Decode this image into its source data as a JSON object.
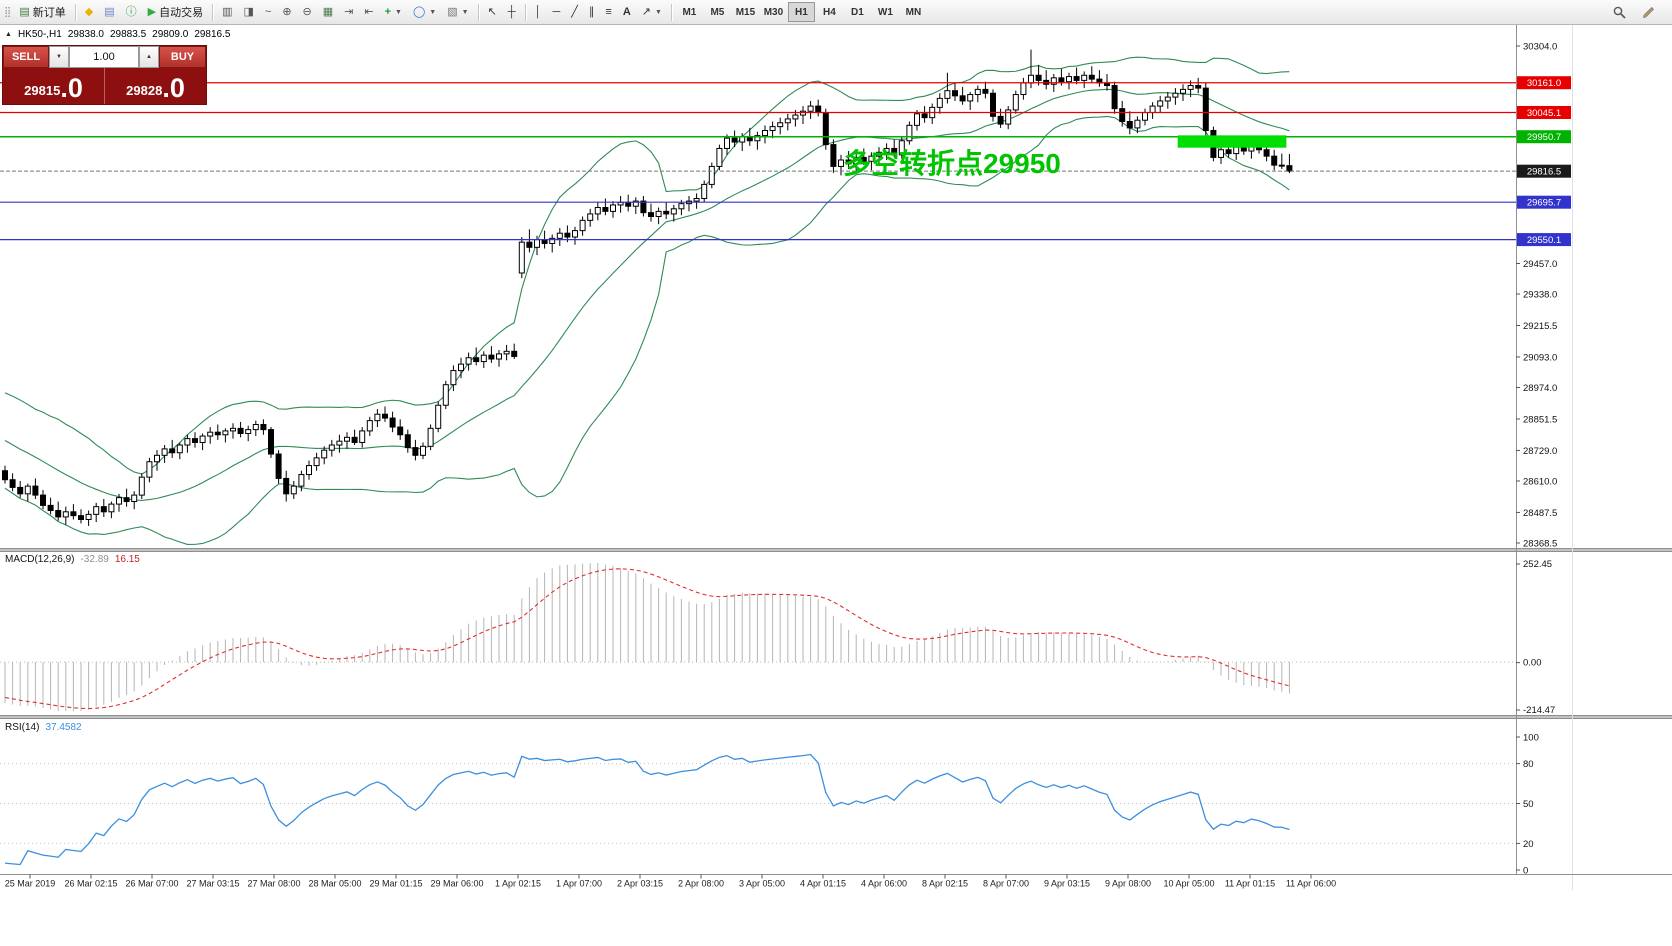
{
  "toolbar": {
    "new_order_label": "新订单",
    "auto_trading_label": "自动交易",
    "timeframes": [
      "M1",
      "M5",
      "M15",
      "M30",
      "H1",
      "H4",
      "D1",
      "W1",
      "MN"
    ],
    "active_timeframe": "H1"
  },
  "symbol_info": {
    "title": "HK50-,H1",
    "open": "29838.0",
    "high": "29883.5",
    "low": "29809.0",
    "close": "29816.5"
  },
  "trade_panel": {
    "sell_label": "SELL",
    "buy_label": "BUY",
    "volume": "1.00",
    "sell_price_main": "29815",
    "sell_price_frac": ".0",
    "buy_price_main": "29828",
    "buy_price_frac": ".0"
  },
  "chart_data": {
    "type": "candlestick",
    "symbol": "HK50-",
    "timeframe": "H1",
    "annotation": {
      "text": "多空转折点29950",
      "color": "#00c400"
    },
    "price_axis": {
      "side": "right",
      "ticks": [
        "30304.0",
        "29457.0",
        "29338.0",
        "29215.5",
        "29093.0",
        "28974.0",
        "28851.5",
        "28729.0",
        "28610.0",
        "28487.5",
        "28368.5"
      ]
    },
    "time_axis": [
      "25 Mar 2019",
      "26 Mar 02:15",
      "26 Mar 07:00",
      "27 Mar 03:15",
      "27 Mar 08:00",
      "28 Mar 05:00",
      "29 Mar 01:15",
      "29 Mar 06:00",
      "1 Apr 02:15",
      "1 Apr 07:00",
      "2 Apr 03:15",
      "2 Apr 08:00",
      "3 Apr 05:00",
      "4 Apr 01:15",
      "4 Apr 06:00",
      "8 Apr 02:15",
      "8 Apr 07:00",
      "9 Apr 03:15",
      "9 Apr 08:00",
      "10 Apr 05:00",
      "11 Apr 01:15",
      "11 Apr 06:00"
    ],
    "levels": [
      {
        "price": 30161.0,
        "label": "30161.0",
        "color": "#e80000",
        "type": "resistance"
      },
      {
        "price": 30045.1,
        "label": "30045.1",
        "color": "#e80000",
        "type": "resistance"
      },
      {
        "price": 29950.7,
        "label": "29950.7",
        "color": "#00b300",
        "type": "pivot"
      },
      {
        "price": 29816.5,
        "label": "29816.5",
        "color": "#1a1a1a",
        "type": "current"
      },
      {
        "price": 29695.7,
        "label": "29695.7",
        "color": "#3232cc",
        "type": "support"
      },
      {
        "price": 29550.1,
        "label": "29550.1",
        "color": "#3232cc",
        "type": "support"
      }
    ],
    "highlight_box": {
      "index_start": 154.3,
      "index_end": 168.6,
      "price_top": 29956,
      "price_bottom": 29908,
      "color": "#00dd00"
    },
    "indicators": {
      "bollinger": {
        "period": 20,
        "deviation": 2,
        "color": "#2e8b57"
      },
      "macd": {
        "name": "MACD(12,26,9)",
        "fast": 12,
        "slow": 26,
        "signal": 9,
        "value": "-32.89",
        "signal_value": "16.15",
        "axis_ticks": [
          "252.45",
          "0.00",
          "-214.47"
        ],
        "histogram_color": "#b5b5b5",
        "signal_color": "#e03030"
      },
      "rsi": {
        "name": "RSI(14)",
        "period": 14,
        "value": "37.4582",
        "axis_ticks": [
          "100",
          "80",
          "50",
          "20",
          "0"
        ],
        "guide_levels": [
          80,
          50,
          20
        ],
        "color": "#3c8fde"
      }
    },
    "candles": [
      [
        28650,
        28670,
        28600,
        28615
      ],
      [
        28615,
        28640,
        28570,
        28585
      ],
      [
        28585,
        28610,
        28545,
        28560
      ],
      [
        28560,
        28600,
        28530,
        28590
      ],
      [
        28590,
        28620,
        28540,
        28555
      ],
      [
        28555,
        28575,
        28500,
        28515
      ],
      [
        28515,
        28545,
        28480,
        28495
      ],
      [
        28495,
        28530,
        28455,
        28470
      ],
      [
        28470,
        28510,
        28440,
        28490
      ],
      [
        28490,
        28520,
        28460,
        28475
      ],
      [
        28475,
        28500,
        28445,
        28460
      ],
      [
        28460,
        28495,
        28435,
        28480
      ],
      [
        28480,
        28525,
        28450,
        28510
      ],
      [
        28510,
        28540,
        28470,
        28490
      ],
      [
        28490,
        28530,
        28465,
        28520
      ],
      [
        28520,
        28560,
        28490,
        28545
      ],
      [
        28545,
        28580,
        28510,
        28530
      ],
      [
        28530,
        28570,
        28500,
        28555
      ],
      [
        28555,
        28640,
        28540,
        28625
      ],
      [
        28625,
        28700,
        28605,
        28685
      ],
      [
        28685,
        28730,
        28650,
        28710
      ],
      [
        28710,
        28750,
        28680,
        28735
      ],
      [
        28735,
        28770,
        28700,
        28720
      ],
      [
        28720,
        28760,
        28695,
        28750
      ],
      [
        28750,
        28790,
        28720,
        28775
      ],
      [
        28775,
        28800,
        28740,
        28760
      ],
      [
        28760,
        28795,
        28730,
        28785
      ],
      [
        28785,
        28820,
        28755,
        28800
      ],
      [
        28800,
        28830,
        28770,
        28790
      ],
      [
        28790,
        28815,
        28760,
        28805
      ],
      [
        28805,
        28835,
        28775,
        28815
      ],
      [
        28815,
        28840,
        28780,
        28795
      ],
      [
        28795,
        28825,
        28765,
        28810
      ],
      [
        28810,
        28845,
        28785,
        28830
      ],
      [
        28830,
        28850,
        28790,
        28810
      ],
      [
        28810,
        28820,
        28700,
        28715
      ],
      [
        28715,
        28730,
        28600,
        28620
      ],
      [
        28620,
        28650,
        28530,
        28560
      ],
      [
        28560,
        28610,
        28540,
        28590
      ],
      [
        28590,
        28650,
        28570,
        28635
      ],
      [
        28635,
        28690,
        28615,
        28670
      ],
      [
        28670,
        28720,
        28650,
        28700
      ],
      [
        28700,
        28745,
        28675,
        28730
      ],
      [
        28730,
        28770,
        28705,
        28750
      ],
      [
        28750,
        28790,
        28720,
        28765
      ],
      [
        28765,
        28800,
        28735,
        28780
      ],
      [
        28780,
        28810,
        28750,
        28760
      ],
      [
        28760,
        28820,
        28740,
        28805
      ],
      [
        28805,
        28860,
        28785,
        28845
      ],
      [
        28845,
        28890,
        28820,
        28870
      ],
      [
        28870,
        28900,
        28840,
        28855
      ],
      [
        28855,
        28880,
        28800,
        28820
      ],
      [
        28820,
        28850,
        28770,
        28790
      ],
      [
        28790,
        28810,
        28720,
        28740
      ],
      [
        28740,
        28770,
        28690,
        28710
      ],
      [
        28710,
        28760,
        28695,
        28745
      ],
      [
        28745,
        28830,
        28730,
        28815
      ],
      [
        28815,
        28920,
        28800,
        28905
      ],
      [
        28905,
        29000,
        28890,
        28985
      ],
      [
        28985,
        29060,
        28960,
        29040
      ],
      [
        29040,
        29090,
        29010,
        29065
      ],
      [
        29065,
        29110,
        29040,
        29090
      ],
      [
        29090,
        29130,
        29060,
        29075
      ],
      [
        29075,
        29115,
        29050,
        29100
      ],
      [
        29100,
        29135,
        29070,
        29085
      ],
      [
        29085,
        29120,
        29055,
        29105
      ],
      [
        29105,
        29140,
        29080,
        29115
      ],
      [
        29115,
        29145,
        29085,
        29095
      ],
      [
        29420,
        29560,
        29400,
        29540
      ],
      [
        29540,
        29590,
        29500,
        29520
      ],
      [
        29520,
        29565,
        29490,
        29550
      ],
      [
        29550,
        29585,
        29515,
        29535
      ],
      [
        29535,
        29570,
        29500,
        29555
      ],
      [
        29555,
        29595,
        29525,
        29575
      ],
      [
        29575,
        29605,
        29540,
        29560
      ],
      [
        29560,
        29600,
        29530,
        29585
      ],
      [
        29585,
        29640,
        29565,
        29625
      ],
      [
        29625,
        29670,
        29600,
        29650
      ],
      [
        29650,
        29695,
        29625,
        29675
      ],
      [
        29675,
        29710,
        29645,
        29660
      ],
      [
        29660,
        29700,
        29635,
        29685
      ],
      [
        29685,
        29720,
        29655,
        29695
      ],
      [
        29695,
        29725,
        29660,
        29680
      ],
      [
        29680,
        29715,
        29650,
        29700
      ],
      [
        29700,
        29720,
        29640,
        29655
      ],
      [
        29655,
        29690,
        29620,
        29640
      ],
      [
        29640,
        29675,
        29610,
        29660
      ],
      [
        29660,
        29695,
        29630,
        29650
      ],
      [
        29650,
        29685,
        29620,
        29670
      ],
      [
        29670,
        29705,
        29645,
        29690
      ],
      [
        29690,
        29720,
        29660,
        29700
      ],
      [
        29700,
        29730,
        29670,
        29710
      ],
      [
        29710,
        29780,
        29695,
        29765
      ],
      [
        29765,
        29850,
        29750,
        29835
      ],
      [
        29835,
        29920,
        29820,
        29905
      ],
      [
        29905,
        29960,
        29880,
        29945
      ],
      [
        29945,
        29975,
        29910,
        29930
      ],
      [
        29930,
        29965,
        29895,
        29950
      ],
      [
        29950,
        29985,
        29915,
        29935
      ],
      [
        29935,
        29970,
        29900,
        29955
      ],
      [
        29955,
        29995,
        29925,
        29975
      ],
      [
        29975,
        30010,
        29945,
        29990
      ],
      [
        29990,
        30025,
        29960,
        30005
      ],
      [
        30005,
        30040,
        29975,
        30020
      ],
      [
        30020,
        30055,
        29990,
        30035
      ],
      [
        30035,
        30070,
        30000,
        30050
      ],
      [
        30050,
        30090,
        30020,
        30070
      ],
      [
        30070,
        30095,
        30030,
        30045
      ],
      [
        30045,
        30060,
        29900,
        29920
      ],
      [
        29920,
        29940,
        29810,
        29835
      ],
      [
        29835,
        29880,
        29800,
        29860
      ],
      [
        29860,
        29895,
        29825,
        29845
      ],
      [
        29845,
        29885,
        29815,
        29870
      ],
      [
        29870,
        29905,
        29840,
        29855
      ],
      [
        29855,
        29890,
        29820,
        29875
      ],
      [
        29875,
        29910,
        29845,
        29890
      ],
      [
        29890,
        29925,
        29860,
        29905
      ],
      [
        29905,
        29940,
        29870,
        29880
      ],
      [
        29880,
        29950,
        29865,
        29935
      ],
      [
        29935,
        30010,
        29920,
        29995
      ],
      [
        29995,
        30055,
        29975,
        30040
      ],
      [
        30040,
        30070,
        30005,
        30025
      ],
      [
        30025,
        30080,
        30000,
        30065
      ],
      [
        30065,
        30120,
        30040,
        30100
      ],
      [
        30100,
        30200,
        30080,
        30130
      ],
      [
        30130,
        30160,
        30090,
        30110
      ],
      [
        30110,
        30145,
        30075,
        30090
      ],
      [
        30090,
        30125,
        30055,
        30115
      ],
      [
        30115,
        30150,
        30085,
        30135
      ],
      [
        30135,
        30165,
        30100,
        30120
      ],
      [
        30120,
        30135,
        30010,
        30030
      ],
      [
        30030,
        30060,
        29985,
        30000
      ],
      [
        30000,
        30070,
        29980,
        30055
      ],
      [
        30055,
        30130,
        30040,
        30115
      ],
      [
        30115,
        30180,
        30095,
        30160
      ],
      [
        30160,
        30290,
        30140,
        30190
      ],
      [
        30190,
        30230,
        30150,
        30170
      ],
      [
        30170,
        30210,
        30135,
        30155
      ],
      [
        30155,
        30195,
        30125,
        30180
      ],
      [
        30180,
        30215,
        30150,
        30165
      ],
      [
        30165,
        30200,
        30135,
        30185
      ],
      [
        30185,
        30220,
        30155,
        30170
      ],
      [
        30170,
        30205,
        30140,
        30190
      ],
      [
        30190,
        30225,
        30160,
        30175
      ],
      [
        30175,
        30210,
        30145,
        30160
      ],
      [
        30160,
        30195,
        30130,
        30150
      ],
      [
        30150,
        30165,
        30040,
        30060
      ],
      [
        30060,
        30090,
        29990,
        30010
      ],
      [
        30010,
        30050,
        29960,
        29985
      ],
      [
        29985,
        30030,
        29965,
        30015
      ],
      [
        30015,
        30060,
        29995,
        30045
      ],
      [
        30045,
        30085,
        30020,
        30070
      ],
      [
        30070,
        30110,
        30045,
        30090
      ],
      [
        30090,
        30125,
        30060,
        30105
      ],
      [
        30105,
        30140,
        30075,
        30120
      ],
      [
        30120,
        30155,
        30090,
        30135
      ],
      [
        30135,
        30170,
        30105,
        30150
      ],
      [
        30150,
        30180,
        30120,
        30140
      ],
      [
        30140,
        30160,
        29950,
        29975
      ],
      [
        29975,
        29990,
        29855,
        29870
      ],
      [
        29870,
        29920,
        29845,
        29900
      ],
      [
        29900,
        29935,
        29870,
        29885
      ],
      [
        29885,
        29925,
        29860,
        29910
      ],
      [
        29910,
        29945,
        29880,
        29895
      ],
      [
        29895,
        29930,
        29865,
        29915
      ],
      [
        29915,
        29950,
        29885,
        29900
      ],
      [
        29900,
        29930,
        29855,
        29875
      ],
      [
        29875,
        29900,
        29820,
        29840
      ],
      [
        29840,
        29885,
        29825,
        29838
      ],
      [
        29838,
        29883.5,
        29809,
        29816.5
      ]
    ]
  }
}
